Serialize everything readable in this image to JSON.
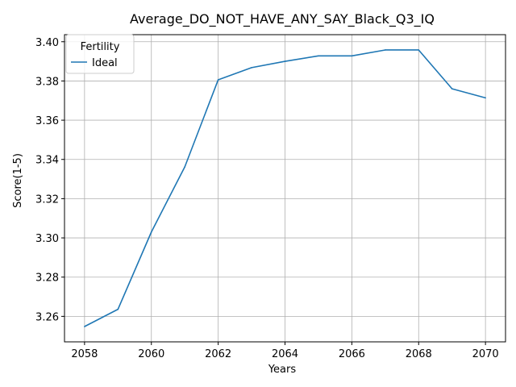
{
  "chart_data": {
    "type": "line",
    "title": "Average_DO_NOT_HAVE_ANY_SAY_Black_Q3_IQ",
    "xlabel": "Years",
    "ylabel": "Score(1-5)",
    "x": [
      2058,
      2059,
      2060,
      2061,
      2062,
      2063,
      2064,
      2065,
      2066,
      2067,
      2068,
      2069,
      2070
    ],
    "series": [
      {
        "name": "Ideal",
        "color": "#1f77b4",
        "values": [
          3.2548,
          3.2636,
          3.303,
          3.3362,
          3.3806,
          3.3868,
          3.39,
          3.3928,
          3.3928,
          3.3958,
          3.3958,
          3.376,
          3.3714
        ]
      }
    ],
    "xlim": [
      2057.4,
      2070.6
    ],
    "ylim": [
      3.247,
      3.4036
    ],
    "xticks": [
      2058,
      2060,
      2062,
      2064,
      2066,
      2068,
      2070
    ],
    "yticks": [
      3.26,
      3.28,
      3.3,
      3.32,
      3.34,
      3.36,
      3.38,
      3.4
    ],
    "grid": true,
    "legend": {
      "title": "Fertility",
      "placement": "top-left"
    }
  }
}
